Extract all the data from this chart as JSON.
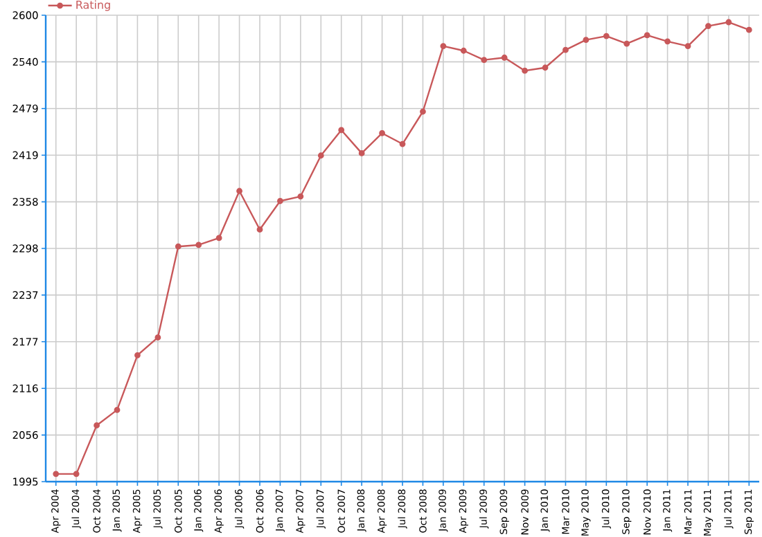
{
  "chart_data": {
    "type": "line",
    "categories": [
      "Apr 2004",
      "Jul 2004",
      "Oct 2004",
      "Jan 2005",
      "Apr 2005",
      "Jul 2005",
      "Oct 2005",
      "Jan 2006",
      "Apr 2006",
      "Jul 2006",
      "Oct 2006",
      "Jan 2007",
      "Apr 2007",
      "Jul 2007",
      "Oct 2007",
      "Jan 2008",
      "Apr 2008",
      "Jul 2008",
      "Oct 2008",
      "Jan 2009",
      "Apr 2009",
      "Jul 2009",
      "Sep 2009",
      "Nov 2009",
      "Jan 2010",
      "Mar 2010",
      "May 2010",
      "Jul 2010",
      "Sep 2010",
      "Nov 2010",
      "Jan 2011",
      "Mar 2011",
      "May 2011",
      "Jul 2011",
      "Sep 2011"
    ],
    "series": [
      {
        "name": "Rating",
        "color": "#c8585a",
        "values": [
          2005,
          2005,
          2068,
          2088,
          2159,
          2182,
          2300,
          2302,
          2311,
          2372,
          2322,
          2359,
          2365,
          2418,
          2451,
          2421,
          2447,
          2433,
          2475,
          2560,
          2554,
          2542,
          2545,
          2528,
          2532,
          2555,
          2568,
          2573,
          2563,
          2574,
          2566,
          2560,
          2586,
          2591,
          2581
        ]
      }
    ],
    "ylim": [
      1995,
      2600
    ],
    "yticks": [
      {
        "value": 1995,
        "label": "1995"
      },
      {
        "value": 2055.5,
        "label": "2056"
      },
      {
        "value": 2116,
        "label": "2116"
      },
      {
        "value": 2176.5,
        "label": "2177"
      },
      {
        "value": 2237,
        "label": "2237"
      },
      {
        "value": 2297.5,
        "label": "2298"
      },
      {
        "value": 2358,
        "label": "2358"
      },
      {
        "value": 2418.5,
        "label": "2419"
      },
      {
        "value": 2479,
        "label": "2479"
      },
      {
        "value": 2539.5,
        "label": "2540"
      },
      {
        "value": 2600,
        "label": "2600"
      }
    ],
    "grid": true,
    "legend": "top left",
    "marker": "circle",
    "line_style": "solid"
  }
}
